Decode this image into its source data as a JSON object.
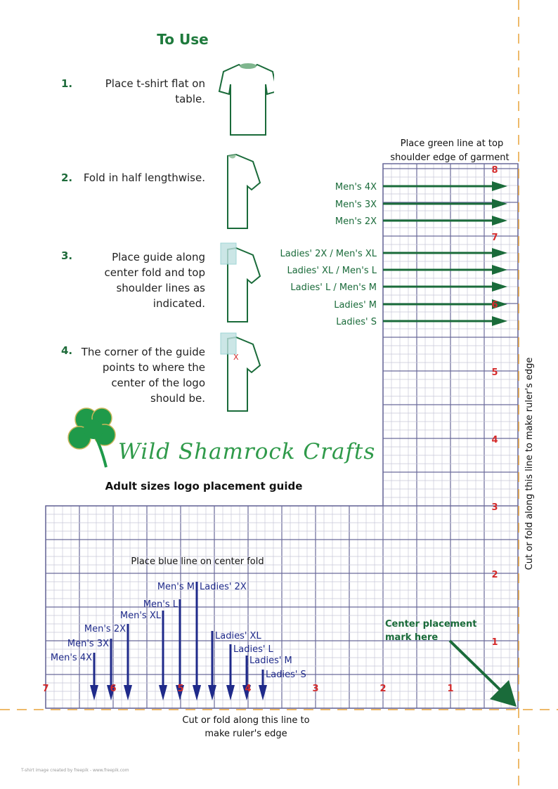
{
  "title": "To Use",
  "steps": [
    {
      "num": "1.",
      "text": "Place t-shirt flat on table."
    },
    {
      "num": "2.",
      "text": "Fold in half lengthwise."
    },
    {
      "num": "3.",
      "text": "Place guide along center fold and top shoulder lines as indicated."
    },
    {
      "num": "4.",
      "text": "The corner of the guide points to where the center of the logo should be."
    }
  ],
  "step4_mark": "X",
  "logo": {
    "brand": "Wild Shamrock Crafts"
  },
  "subtitle": "Adult sizes logo placement guide",
  "vertical_guide": {
    "heading_line1": "Place green line at top",
    "heading_line2": "shoulder edge of garment",
    "sizes": [
      "Men's 4X",
      "Men's 3X",
      "Men's 2X",
      "Ladies' 2X / Men's XL",
      "Ladies' XL / Men's L",
      "Ladies' L / Men's M",
      "Ladies' M",
      "Ladies' S"
    ],
    "ruler_numbers": [
      "8",
      "7",
      "6",
      "5",
      "4",
      "3",
      "2",
      "1"
    ],
    "cut_label": "Cut or fold along this line to make ruler's edge"
  },
  "horizontal_guide": {
    "heading": "Place blue line on center fold",
    "sizes": [
      "Men's 4X",
      "Men's 3X",
      "Men's 2X",
      "Men's XL",
      "Men's L",
      "Men's M",
      "Ladies' 2X",
      "Ladies' XL",
      "Ladies' L",
      "Ladies' M",
      "Ladies' S"
    ],
    "ruler_numbers": [
      "7",
      "6",
      "5",
      "4",
      "3",
      "2",
      "1"
    ],
    "cut_label_line1": "Cut or fold along this line to",
    "cut_label_line2": "make ruler's edge"
  },
  "center_mark": {
    "line1": "Center placement",
    "line2": "mark here"
  },
  "credit": "T-shirt image created by freepik - www.freepik.com",
  "colors": {
    "green": "#1a6b3a",
    "blue": "#1f2a8a",
    "red": "#d42a2a",
    "grid": "#6a6a9a",
    "cut_line": "#e8a33a"
  }
}
